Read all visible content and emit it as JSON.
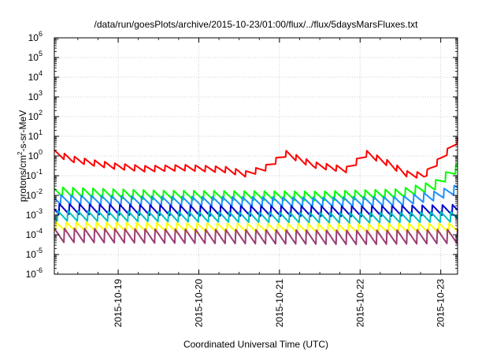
{
  "chart_data": {
    "type": "line",
    "title": "/data/run/goesPlots/archive/2015-10-23/01:00/flux/../flux/5daysMarsFluxes.txt",
    "xlabel": "Coordinated Universal Time (UTC)",
    "ylabel": "protons/cm²-s-sr-MeV",
    "ylabel_parts": {
      "prefix": "protons/cm",
      "sup": "2",
      "suffix": "-s-sr-MeV"
    },
    "yscale": "log",
    "ylim": [
      1e-06,
      1000000.0
    ],
    "y_ticks": [
      {
        "base": "10",
        "exp": "-6",
        "value": 1e-06
      },
      {
        "base": "10",
        "exp": "-5",
        "value": 1e-05
      },
      {
        "base": "10",
        "exp": "-4",
        "value": 0.0001
      },
      {
        "base": "10",
        "exp": "-3",
        "value": 0.001
      },
      {
        "base": "10",
        "exp": "-2",
        "value": 0.01
      },
      {
        "base": "10",
        "exp": "-1",
        "value": 0.1
      },
      {
        "base": "10",
        "exp": "0",
        "value": 1
      },
      {
        "base": "10",
        "exp": "1",
        "value": 10
      },
      {
        "base": "10",
        "exp": "2",
        "value": 100
      },
      {
        "base": "10",
        "exp": "3",
        "value": 1000
      },
      {
        "base": "10",
        "exp": "4",
        "value": 10000
      },
      {
        "base": "10",
        "exp": "5",
        "value": 100000
      },
      {
        "base": "10",
        "exp": "6",
        "value": 1000000
      }
    ],
    "xlim": [
      "2015-10-18T05:00",
      "2015-10-23T05:00"
    ],
    "x_ticks": [
      {
        "label": "2015-10-19",
        "value": "2015-10-19T00:00"
      },
      {
        "label": "2015-10-20",
        "value": "2015-10-20T00:00"
      },
      {
        "label": "2015-10-21",
        "value": "2015-10-21T00:00"
      },
      {
        "label": "2015-10-22",
        "value": "2015-10-22T00:00"
      },
      {
        "label": "2015-10-23",
        "value": "2015-10-23T00:00"
      }
    ],
    "grid": true,
    "legend": "none",
    "sawtooth_period_hours": 3,
    "series": [
      {
        "color": "#ff0000",
        "pattern": "sawtooth",
        "amplitude_decades": 0.32,
        "envelope": [
          [
            "2015-10-18T05:00",
            1.4
          ],
          [
            "2015-10-18T10:00",
            0.7
          ],
          [
            "2015-10-18T16:00",
            0.45
          ],
          [
            "2015-10-18T23:00",
            0.3
          ],
          [
            "2015-10-19T08:00",
            0.22
          ],
          [
            "2015-10-19T20:00",
            0.25
          ],
          [
            "2015-10-20T08:00",
            0.2
          ],
          [
            "2015-10-20T14:00",
            0.12
          ],
          [
            "2015-10-20T20:00",
            0.25
          ],
          [
            "2015-10-21T02:00",
            1.3
          ],
          [
            "2015-10-21T10:00",
            0.35
          ],
          [
            "2015-10-21T20:00",
            0.2
          ],
          [
            "2015-10-22T02:00",
            1.3
          ],
          [
            "2015-10-22T08:00",
            0.45
          ],
          [
            "2015-10-22T14:00",
            0.12
          ],
          [
            "2015-10-22T19:00",
            0.1
          ],
          [
            "2015-10-23T00:00",
            0.7
          ],
          [
            "2015-10-23T05:00",
            6.0
          ]
        ]
      },
      {
        "color": "#00ff00",
        "pattern": "sawtooth",
        "amplitude_decades": 0.5,
        "envelope": [
          [
            "2015-10-18T05:00",
            0.015
          ],
          [
            "2015-10-19T12:00",
            0.01
          ],
          [
            "2015-10-21T12:00",
            0.009
          ],
          [
            "2015-10-22T12:00",
            0.012
          ],
          [
            "2015-10-22T22:00",
            0.03
          ],
          [
            "2015-10-23T05:00",
            0.25
          ]
        ]
      },
      {
        "color": "#1e90ff",
        "pattern": "sawtooth",
        "amplitude_decades": 0.5,
        "envelope": [
          [
            "2015-10-18T05:00",
            0.006
          ],
          [
            "2015-10-19T12:00",
            0.005
          ],
          [
            "2015-10-21T12:00",
            0.0045
          ],
          [
            "2015-10-22T12:00",
            0.005
          ],
          [
            "2015-10-22T22:00",
            0.009
          ],
          [
            "2015-10-23T05:00",
            0.02
          ]
        ]
      },
      {
        "color": "#0000cd",
        "pattern": "sawtooth",
        "amplitude_decades": 0.55,
        "envelope": [
          [
            "2015-10-18T05:00",
            0.002
          ],
          [
            "2015-10-20T00:00",
            0.0016
          ],
          [
            "2015-10-22T00:00",
            0.0015
          ],
          [
            "2015-10-23T05:00",
            0.0018
          ]
        ]
      },
      {
        "color": "#00bfbf",
        "pattern": "sawtooth",
        "amplitude_decades": 0.55,
        "envelope": [
          [
            "2015-10-18T05:00",
            0.0009
          ],
          [
            "2015-10-20T00:00",
            0.0008
          ],
          [
            "2015-10-22T00:00",
            0.0007
          ],
          [
            "2015-10-23T05:00",
            0.0008
          ]
        ]
      },
      {
        "color": "#ffff00",
        "pattern": "sawtooth",
        "amplitude_decades": 0.5,
        "envelope": [
          [
            "2015-10-18T05:00",
            0.00025
          ],
          [
            "2015-10-20T00:00",
            0.00022
          ],
          [
            "2015-10-22T00:00",
            0.0002
          ],
          [
            "2015-10-23T05:00",
            0.00022
          ]
        ]
      },
      {
        "color": "#9b3d74",
        "pattern": "sawtooth",
        "amplitude_decades": 0.75,
        "envelope": [
          [
            "2015-10-18T05:00",
            9e-05
          ],
          [
            "2015-10-20T00:00",
            8e-05
          ],
          [
            "2015-10-22T00:00",
            7e-05
          ],
          [
            "2015-10-23T05:00",
            8e-05
          ]
        ]
      }
    ]
  }
}
